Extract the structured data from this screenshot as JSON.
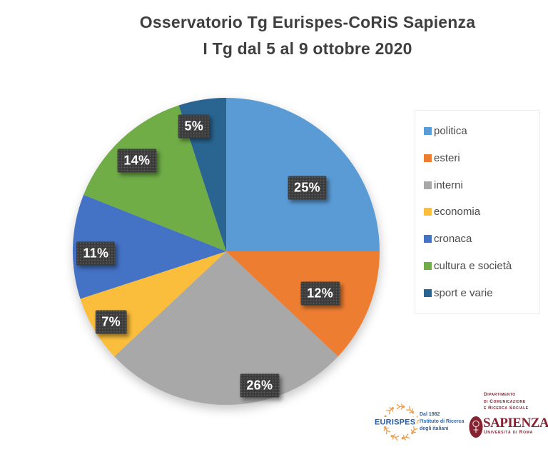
{
  "title": {
    "line1": "Osservatorio Tg Eurispes-CoRiS Sapienza",
    "line2": "I Tg dal 5 al 9 ottobre 2020"
  },
  "chart_data": {
    "type": "pie",
    "title": "Osservatorio Tg Eurispes-CoRiS Sapienza",
    "subtitle": "I Tg dal 5 al 9 ottobre 2020",
    "categories": [
      "politica",
      "esteri",
      "interni",
      "economia",
      "cronaca",
      "cultura e società",
      "sport e varie"
    ],
    "values": [
      25,
      12,
      26,
      7,
      11,
      14,
      5
    ],
    "unit": "%",
    "data_labels": [
      "25%",
      "12%",
      "26%",
      "7%",
      "11%",
      "14%",
      "5%"
    ],
    "colors": [
      "#5B9BD5",
      "#ED7D31",
      "#A8A8A8",
      "#FBBE3C",
      "#4472C4",
      "#70AD47",
      "#2A6591"
    ],
    "start_angle_deg": 0,
    "direction": "clockwise",
    "legend_position": "right",
    "data_label_style": {
      "background": "#3B3B3B",
      "text_color": "#FFFFFF"
    }
  },
  "legend": {
    "items": [
      {
        "label": "politica"
      },
      {
        "label": "esteri"
      },
      {
        "label": "interni"
      },
      {
        "label": "economia"
      },
      {
        "label": "cronaca"
      },
      {
        "label": "cultura e società"
      },
      {
        "label": "sport e varie"
      }
    ]
  },
  "footer": {
    "eurispes": {
      "name": "EURISPES",
      "tagline_lines": [
        "Dal 1982",
        "l'Istituto di Ricerca",
        "degli italiani"
      ],
      "blue": "#2B5FA8",
      "orange": "#F09E4E"
    },
    "sapienza": {
      "department_lines": [
        "Dipartimento",
        "di Comunicazione",
        "e Ricerca Sociale"
      ],
      "name": "SAPIENZA",
      "subtitle": "Università di Roma",
      "maroon": "#852332"
    }
  }
}
